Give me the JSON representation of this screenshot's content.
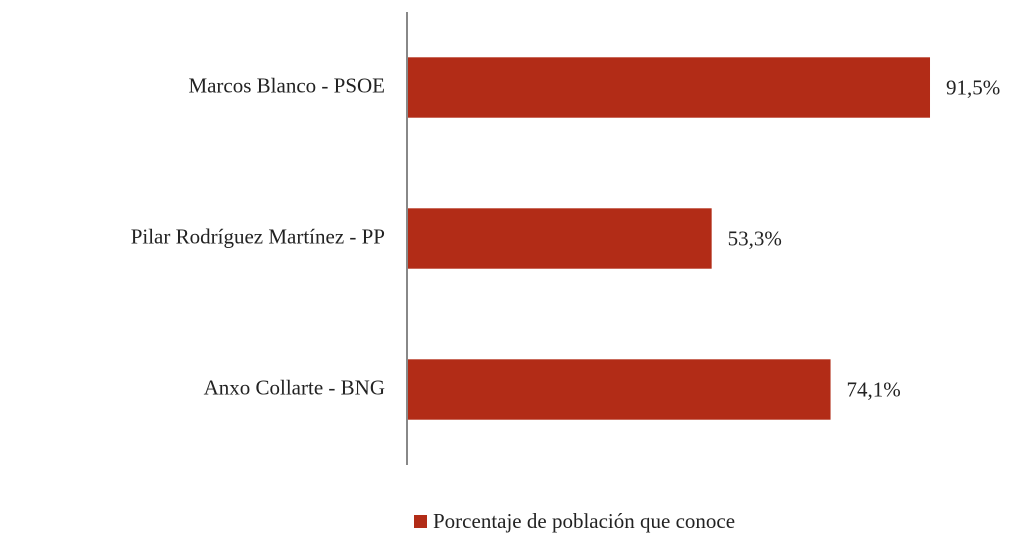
{
  "chart_data": {
    "type": "barh",
    "categories": [
      "Marcos Blanco - PSOE",
      "Pilar Rodríguez Martínez - PP",
      "Anxo Collarte - BNG"
    ],
    "series": [
      {
        "name": "Porcentaje de población que conoce",
        "color": "#b22c17",
        "values": [
          91.5,
          53.3,
          74.1
        ],
        "value_labels": [
          "91,5%",
          "53,3%",
          "74,1%"
        ]
      }
    ],
    "xlim": [
      0,
      100
    ],
    "legend": "bottom"
  }
}
